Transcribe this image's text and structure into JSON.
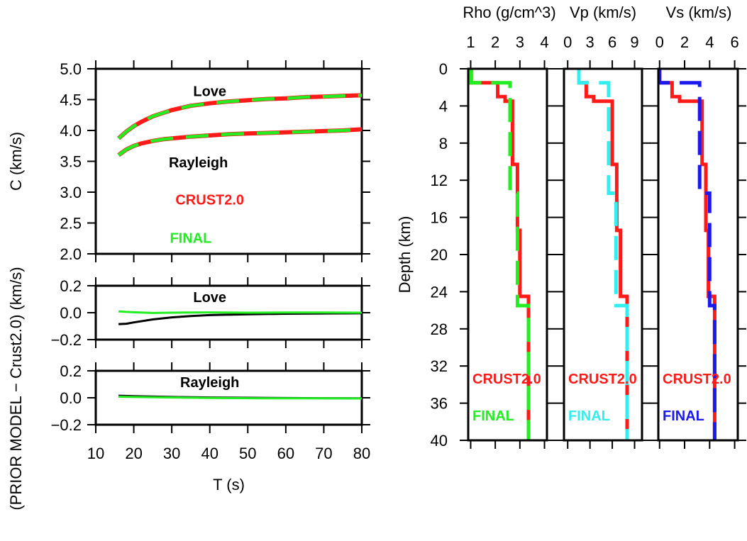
{
  "colors": {
    "crust": "#ff1a1a",
    "final_green": "#22ee22",
    "final_cyan": "#33eeee",
    "final_blue": "#1a1aee",
    "diff_black": "#000000"
  },
  "chart_data": [
    {
      "id": "dispersion",
      "type": "line",
      "title": "",
      "xlabel": "",
      "ylabel": "C (km/s)",
      "xlim": [
        10,
        80
      ],
      "ylim": [
        2.0,
        5.0
      ],
      "xticks": [
        "10",
        "20",
        "30",
        "40",
        "50",
        "60",
        "70",
        "80"
      ],
      "yticks": [
        "2.0",
        "2.5",
        "3.0",
        "3.5",
        "4.0",
        "4.5",
        "5.0"
      ],
      "annotations": [
        {
          "text": "Love",
          "x": 40,
          "y": 4.64
        },
        {
          "text": "Rayleigh",
          "x": 37,
          "y": 3.48
        },
        {
          "text": "CRUST2.0",
          "x": 40,
          "y": 2.88
        },
        {
          "text": "FINAL",
          "x": 35,
          "y": 2.26
        }
      ],
      "x": [
        16,
        18,
        20,
        22,
        25,
        28,
        30,
        35,
        40,
        45,
        50,
        55,
        60,
        65,
        70,
        75,
        80
      ],
      "series": [
        {
          "name": "CRUST2.0",
          "values": [
            3.87,
            3.98,
            4.07,
            4.14,
            4.23,
            4.29,
            4.33,
            4.4,
            4.44,
            4.47,
            4.49,
            4.51,
            4.52,
            4.54,
            4.55,
            4.56,
            4.57
          ]
        },
        {
          "name": "FINAL",
          "values": [
            3.87,
            3.98,
            4.07,
            4.14,
            4.23,
            4.29,
            4.33,
            4.4,
            4.44,
            4.47,
            4.49,
            4.51,
            4.52,
            4.54,
            4.55,
            4.56,
            4.57
          ]
        },
        {
          "name": "CRUST2.0",
          "values": [
            3.6,
            3.69,
            3.75,
            3.79,
            3.83,
            3.86,
            3.87,
            3.9,
            3.92,
            3.94,
            3.95,
            3.96,
            3.97,
            3.98,
            3.99,
            4.0,
            4.02
          ]
        },
        {
          "name": "FINAL",
          "values": [
            3.6,
            3.69,
            3.75,
            3.79,
            3.83,
            3.86,
            3.87,
            3.9,
            3.92,
            3.94,
            3.95,
            3.96,
            3.97,
            3.98,
            3.99,
            4.0,
            4.02
          ]
        }
      ]
    },
    {
      "id": "love_diff",
      "type": "line",
      "title": "Love",
      "xlim": [
        10,
        80
      ],
      "ylim": [
        -0.2,
        0.2
      ],
      "yticks": [
        "−0.2",
        "0.0",
        "0.2"
      ],
      "x": [
        16,
        18,
        20,
        25,
        30,
        35,
        40,
        50,
        60,
        70,
        80
      ],
      "series": [
        {
          "name": "PRIOR",
          "values": [
            -0.085,
            -0.082,
            -0.072,
            -0.05,
            -0.035,
            -0.025,
            -0.018,
            -0.012,
            -0.008,
            -0.006,
            -0.005
          ]
        },
        {
          "name": "FINAL",
          "values": [
            0.01,
            0.006,
            0.003,
            -0.002,
            0.0,
            0.001,
            0.002,
            0.0,
            0.001,
            0.001,
            0.0
          ]
        }
      ]
    },
    {
      "id": "rayleigh_diff",
      "type": "line",
      "title": "Rayleigh",
      "xlabel": "T (s)",
      "xlim": [
        10,
        80
      ],
      "ylim": [
        -0.2,
        0.2
      ],
      "xticks": [
        "10",
        "20",
        "30",
        "40",
        "50",
        "60",
        "70",
        "80"
      ],
      "yticks": [
        "−0.2",
        "0.0",
        "0.2"
      ],
      "shared_ylabel": "(PRIOR MODEL − Crust2.0) (km/s)",
      "x": [
        16,
        20,
        30,
        40,
        50,
        60,
        70,
        80
      ],
      "series": [
        {
          "name": "PRIOR",
          "values": [
            0.015,
            0.012,
            0.006,
            0.002,
            0.0,
            -0.002,
            -0.003,
            -0.004
          ]
        },
        {
          "name": "FINAL",
          "values": [
            0.008,
            0.006,
            0.002,
            -0.001,
            -0.003,
            -0.004,
            -0.004,
            -0.005
          ]
        }
      ]
    },
    {
      "id": "rho",
      "type": "line",
      "title": "Rho (g/cm^3)",
      "ylabel": "Depth (km)",
      "xlim": [
        0.9,
        4.1
      ],
      "ylim": [
        0,
        40
      ],
      "xticks": [
        "1",
        "2",
        "3",
        "4"
      ],
      "yticks": [
        "0",
        "4",
        "8",
        "12",
        "16",
        "20",
        "24",
        "28",
        "32",
        "36",
        "40"
      ],
      "legend": [
        "CRUST2.0",
        "FINAL"
      ],
      "series": [
        {
          "name": "CRUST2.0",
          "points": [
            [
              1.02,
              0
            ],
            [
              1.02,
              1.5
            ],
            [
              2.1,
              1.5
            ],
            [
              2.1,
              3.0
            ],
            [
              2.4,
              3.0
            ],
            [
              2.4,
              3.5
            ],
            [
              2.7,
              3.5
            ],
            [
              2.7,
              10.3
            ],
            [
              2.9,
              10.3
            ],
            [
              2.9,
              17.4
            ],
            [
              3.0,
              17.4
            ],
            [
              3.0,
              24.5
            ],
            [
              3.35,
              24.5
            ],
            [
              3.35,
              40
            ]
          ]
        },
        {
          "name": "FINAL",
          "points": [
            [
              1.02,
              0
            ],
            [
              1.02,
              1.5
            ],
            [
              1.6,
              1.5
            ],
            [
              2.6,
              1.5
            ],
            [
              2.6,
              13.4
            ],
            [
              2.9,
              13.4
            ],
            [
              2.9,
              25.5
            ],
            [
              3.35,
              25.5
            ],
            [
              3.35,
              40
            ]
          ]
        }
      ]
    },
    {
      "id": "vp",
      "type": "line",
      "title": "Vp (km/s)",
      "xlim": [
        -0.5,
        10.0
      ],
      "ylim": [
        0,
        40
      ],
      "xticks": [
        "0",
        "3",
        "6",
        "9"
      ],
      "legend": [
        "CRUST2.0",
        "FINAL"
      ],
      "series": [
        {
          "name": "CRUST2.0",
          "points": [
            [
              1.5,
              0
            ],
            [
              1.5,
              1.5
            ],
            [
              2.5,
              1.5
            ],
            [
              2.5,
              3.0
            ],
            [
              3.5,
              3.0
            ],
            [
              3.5,
              3.5
            ],
            [
              6.0,
              3.5
            ],
            [
              6.0,
              10.3
            ],
            [
              6.6,
              10.3
            ],
            [
              6.6,
              17.4
            ],
            [
              7.1,
              17.4
            ],
            [
              7.1,
              24.5
            ],
            [
              8.0,
              24.5
            ],
            [
              8.0,
              40
            ]
          ]
        },
        {
          "name": "FINAL",
          "points": [
            [
              1.5,
              0
            ],
            [
              1.5,
              1.5
            ],
            [
              4.5,
              1.5
            ],
            [
              5.5,
              1.5
            ],
            [
              5.5,
              13.4
            ],
            [
              6.5,
              13.4
            ],
            [
              6.5,
              25.5
            ],
            [
              8.0,
              25.5
            ],
            [
              8.0,
              40
            ]
          ]
        }
      ]
    },
    {
      "id": "vs",
      "type": "line",
      "title": "Vs (km/s)",
      "xlim": [
        -0.1,
        6.25
      ],
      "ylim": [
        0,
        40
      ],
      "xticks": [
        "0",
        "2",
        "4",
        "6"
      ],
      "legend": [
        "CRUST2.0",
        "FINAL"
      ],
      "series": [
        {
          "name": "CRUST2.0",
          "points": [
            [
              0.0,
              0
            ],
            [
              0.0,
              1.5
            ],
            [
              1.0,
              1.5
            ],
            [
              1.0,
              3.0
            ],
            [
              1.6,
              3.0
            ],
            [
              1.6,
              3.5
            ],
            [
              3.4,
              3.5
            ],
            [
              3.4,
              10.3
            ],
            [
              3.7,
              10.3
            ],
            [
              3.7,
              17.4
            ],
            [
              3.9,
              17.4
            ],
            [
              3.9,
              24.5
            ],
            [
              4.4,
              24.5
            ],
            [
              4.4,
              40
            ]
          ]
        },
        {
          "name": "FINAL",
          "points": [
            [
              0.0,
              0
            ],
            [
              0.0,
              1.5
            ],
            [
              1.2,
              1.5
            ],
            [
              3.2,
              1.5
            ],
            [
              3.2,
              13.4
            ],
            [
              4.0,
              13.4
            ],
            [
              4.0,
              25.5
            ],
            [
              4.4,
              25.5
            ],
            [
              4.4,
              40
            ]
          ]
        }
      ]
    }
  ]
}
